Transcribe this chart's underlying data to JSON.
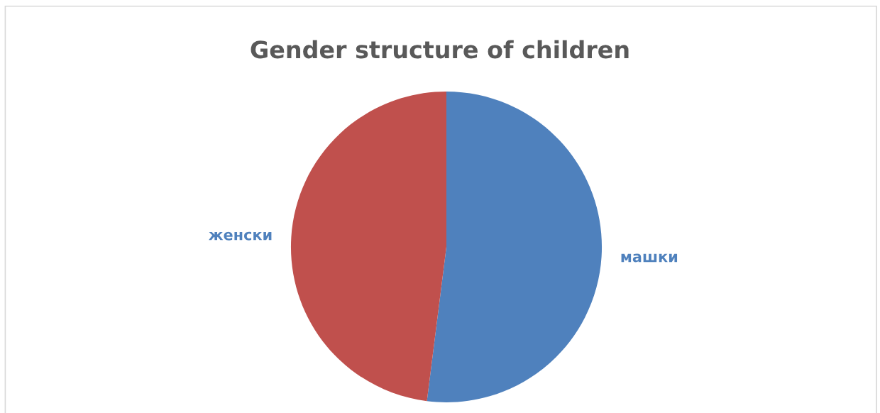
{
  "chart_data": {
    "type": "pie",
    "title": "Gender structure of children",
    "categories": [
      "машки",
      "женски"
    ],
    "values": [
      52,
      48
    ],
    "colors": [
      "#4f81bd",
      "#c0504d"
    ],
    "legend": false
  }
}
